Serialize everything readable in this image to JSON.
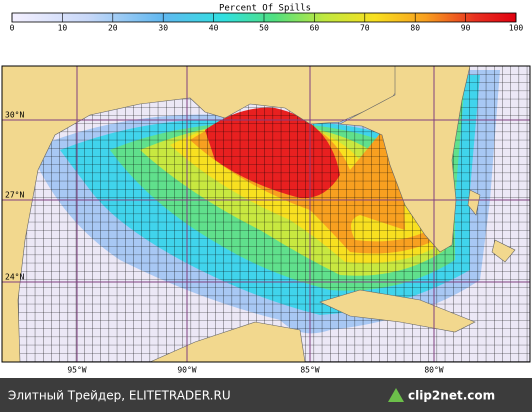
{
  "colorbar": {
    "title": "Percent Of Spills",
    "xlim": [
      0,
      100
    ],
    "xticks": [
      0,
      10,
      20,
      30,
      40,
      50,
      60,
      70,
      80,
      90,
      100
    ]
  },
  "map": {
    "lat_labels": [
      "30°N",
      "27°N",
      "24°N"
    ],
    "lon_labels": [
      "95°W",
      "90°W",
      "85°W",
      "80°W"
    ]
  },
  "footer": {
    "source": "Элитный Трейдер, ELITETRADER.RU",
    "logo": "clip2net.com"
  }
}
